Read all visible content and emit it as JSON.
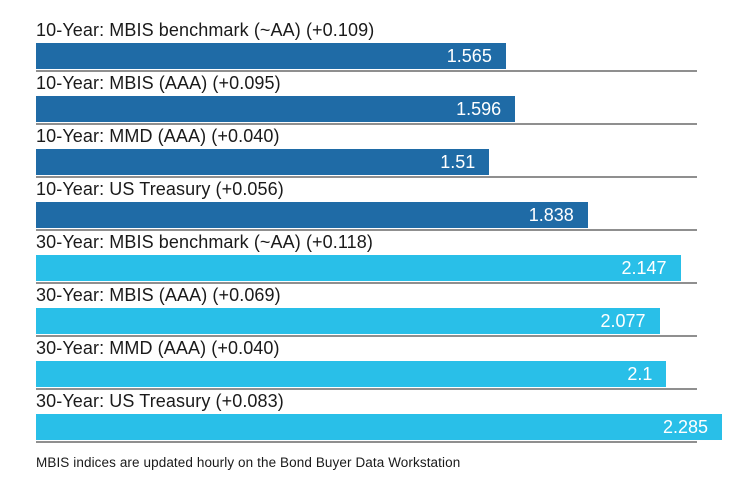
{
  "chart_data": {
    "type": "bar",
    "orientation": "horizontal",
    "xlim": [
      0,
      2.285
    ],
    "bars": [
      {
        "label": "10-Year: MBIS benchmark (~AA) (+0.109)",
        "value": 1.565,
        "display": "1.565",
        "group": "10-year"
      },
      {
        "label": "10-Year: MBIS (AAA) (+0.095)",
        "value": 1.596,
        "display": "1.596",
        "group": "10-year"
      },
      {
        "label": "10-Year: MMD (AAA) (+0.040)",
        "value": 1.51,
        "display": "1.51",
        "group": "10-year"
      },
      {
        "label": "10-Year: US Treasury (+0.056)",
        "value": 1.838,
        "display": "1.838",
        "group": "10-year"
      },
      {
        "label": "30-Year: MBIS benchmark (~AA) (+0.118)",
        "value": 2.147,
        "display": "2.147",
        "group": "30-year"
      },
      {
        "label": "30-Year: MBIS (AAA) (+0.069)",
        "value": 2.077,
        "display": "2.077",
        "group": "30-year"
      },
      {
        "label": "30-Year: MMD (AAA) (+0.040)",
        "value": 2.1,
        "display": "2.1",
        "group": "30-year"
      },
      {
        "label": "30-Year: US Treasury (+0.083)",
        "value": 2.285,
        "display": "2.285",
        "group": "30-year"
      }
    ],
    "colors": {
      "10-year": "#1f6ba6",
      "30-year": "#29bfe8",
      "separator": "#8f8f8f",
      "label_text": "#1a1a1a",
      "value_text": "#ffffff"
    },
    "footnote": "MBIS indices are updated hourly on the Bond Buyer Data Workstation"
  }
}
